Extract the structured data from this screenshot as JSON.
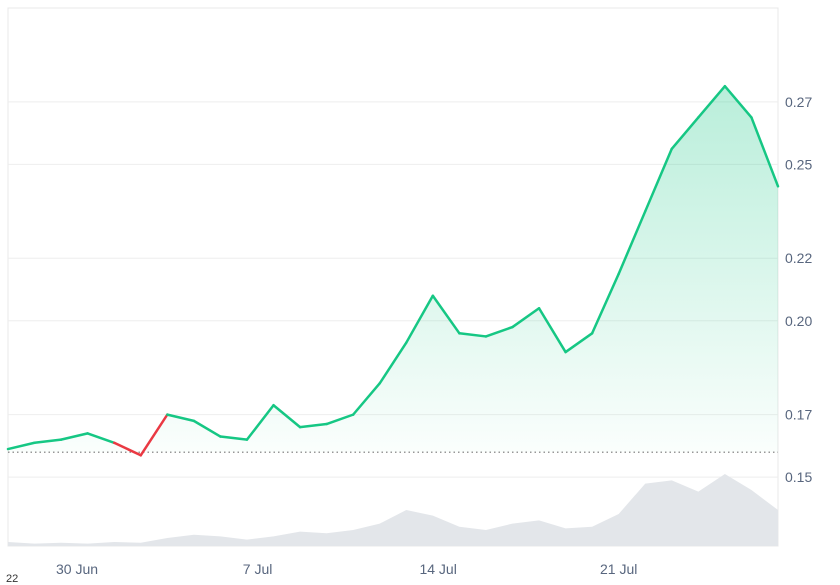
{
  "chart_data": {
    "type": "line",
    "title": "",
    "xlabel": "",
    "ylabel": "",
    "x_ticks": [
      "30 Jun",
      "7 Jul",
      "14 Jul",
      "21 Jul"
    ],
    "y_ticks": [
      "0.27",
      "0.25",
      "0.22",
      "0.20",
      "0.17",
      "0.15"
    ],
    "ylim": [
      0.128,
      0.3
    ],
    "baseline": 0.158,
    "x": [
      0,
      1,
      2,
      3,
      4,
      5,
      6,
      7,
      8,
      9,
      10,
      11,
      12,
      13,
      14,
      15,
      16,
      17,
      18,
      19,
      20,
      21,
      22,
      23,
      24,
      25,
      26,
      27,
      28,
      29
    ],
    "series": [
      {
        "values": [
          0.159,
          0.161,
          0.162,
          0.164,
          0.161,
          0.157,
          0.17,
          0.168,
          0.163,
          0.162,
          0.173,
          0.166,
          0.167,
          0.17,
          0.18,
          0.193,
          0.208,
          0.196,
          0.195,
          0.198,
          0.204,
          0.19,
          0.196,
          0.215,
          0.235,
          0.255,
          0.265,
          0.275,
          0.265,
          0.243
        ]
      }
    ],
    "volume": [
      0.05,
      0.03,
      0.04,
      0.03,
      0.05,
      0.04,
      0.1,
      0.14,
      0.12,
      0.08,
      0.12,
      0.18,
      0.16,
      0.2,
      0.28,
      0.45,
      0.38,
      0.24,
      0.2,
      0.28,
      0.32,
      0.22,
      0.24,
      0.4,
      0.78,
      0.82,
      0.68,
      0.9,
      0.7,
      0.45
    ],
    "grid": true,
    "legend": "none",
    "colors": {
      "up_line": "#16c784",
      "down_line": "#ea3943",
      "area_top": "#c6f1dd",
      "grid": "#eeeeee",
      "volume": "#e3e6ea",
      "axis_text": "#58667e",
      "baseline": "#777777"
    }
  },
  "cut_label": "22"
}
